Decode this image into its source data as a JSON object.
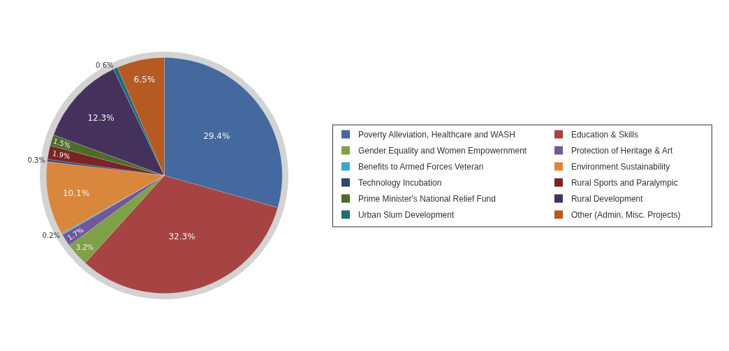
{
  "chart_data": {
    "type": "pie",
    "categories": [
      "Poverty Alleviation, Healthcare and WASH",
      "Education & Skills",
      "Gender Equality and Women Empowernment",
      "Protection of Heritage & Art",
      "Benefits to Armed Forces Veteran",
      "Environment Sustainability",
      "Technology Incubation",
      "Rural Sports and Paralympic",
      "Prime Minister's National Relief Fund",
      "Rural Development",
      "Urban Slum Development",
      "Other (Admin, Misc. Projects)"
    ],
    "values": [
      29.4,
      32.3,
      3.2,
      1.7,
      0.2,
      10.1,
      0.3,
      1.9,
      1.5,
      12.3,
      0.6,
      6.5
    ],
    "value_labels": [
      "29.4%",
      "32.3%",
      "3.2%",
      "1.7%",
      "0.2%",
      "10.1%",
      "0.3%",
      "1.9%",
      "1.5%",
      "12.3%",
      "0.6%",
      "6.5%"
    ],
    "colors": [
      "#44699e",
      "#a54442",
      "#7fa047",
      "#71589a",
      "#3fa7c4",
      "#d8873d",
      "#2a4a70",
      "#7a2525",
      "#4e6b2a",
      "#45325c",
      "#1f6b7a",
      "#b55a22"
    ],
    "legend": "right"
  }
}
